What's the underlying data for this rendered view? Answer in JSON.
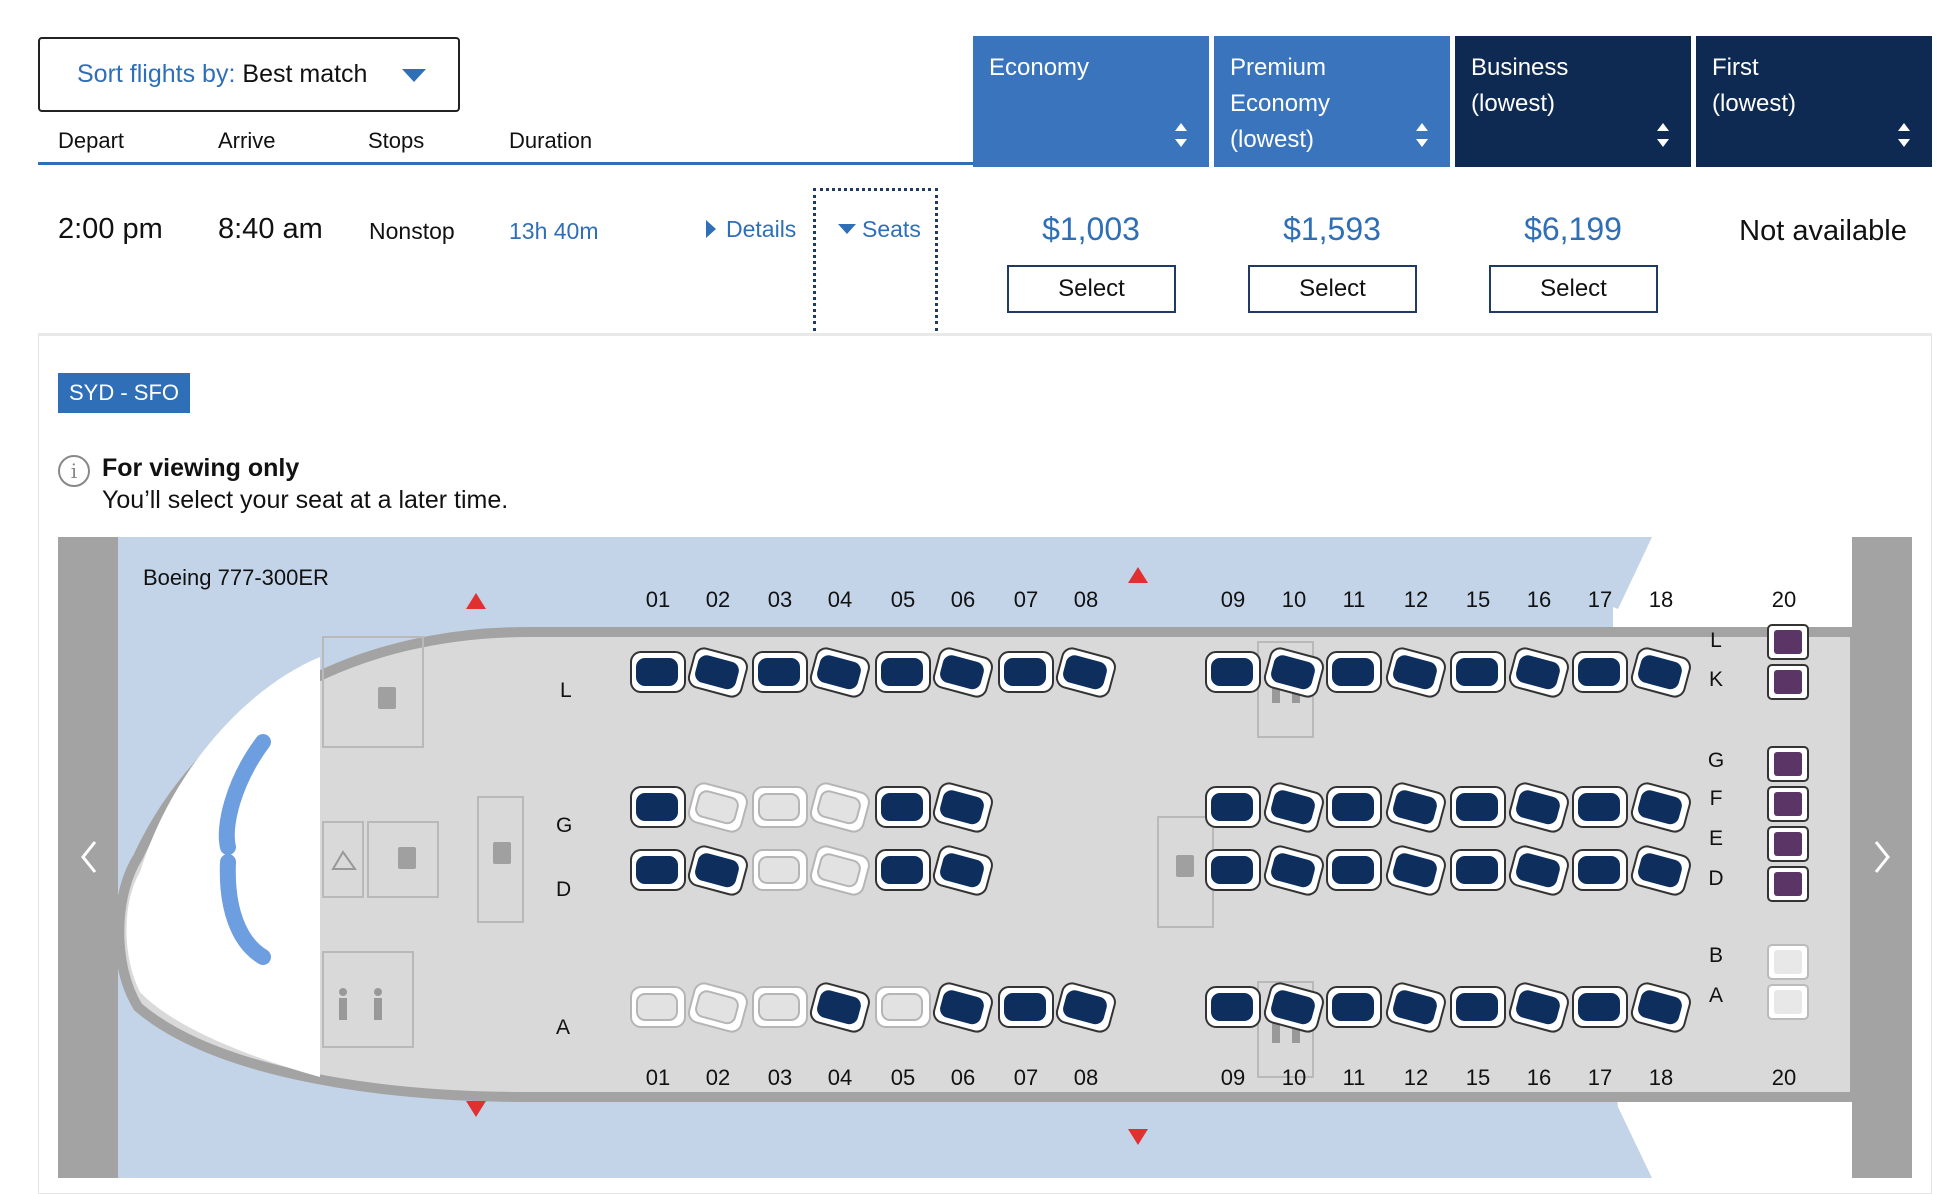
{
  "sort": {
    "label": "Sort flights by:",
    "value": "Best match"
  },
  "columns": {
    "depart": "Depart",
    "arrive": "Arrive",
    "stops": "Stops",
    "duration": "Duration"
  },
  "fare_classes": [
    {
      "line1": "Economy",
      "line2": "",
      "line3": "",
      "color": "#3a74bd"
    },
    {
      "line1": "Premium",
      "line2": "Economy",
      "line3": "(lowest)",
      "color": "#3a74bd"
    },
    {
      "line1": "Business",
      "line2": "(lowest)",
      "line3": "",
      "color": "#0e2a52"
    },
    {
      "line1": "First",
      "line2": "(lowest)",
      "line3": "",
      "color": "#0e2a52"
    }
  ],
  "flight": {
    "depart": "2:00 pm",
    "arrive": "8:40 am",
    "stops": "Nonstop",
    "duration": "13h 40m",
    "details_link": "Details",
    "seats_link": "Seats",
    "prices": [
      "$1,003",
      "$1,593",
      "$6,199"
    ],
    "select_label": "Select",
    "first_status": "Not available"
  },
  "route": "SYD - SFO",
  "notice": {
    "title": "For viewing only",
    "subtitle": "You’ll select your seat at a later time."
  },
  "aircraft": "Boeing 777-300ER",
  "rows": [
    "01",
    "02",
    "03",
    "04",
    "05",
    "06",
    "07",
    "08",
    "09",
    "10",
    "11",
    "12",
    "15",
    "16",
    "17",
    "18",
    "20"
  ],
  "seat_letters_front": {
    "L": "L",
    "G": "G",
    "D": "D",
    "A": "A"
  },
  "seat_letters_back": [
    "L",
    "K",
    "G",
    "F",
    "E",
    "D",
    "B",
    "A"
  ],
  "seat_status": {
    "front_L": [
      1,
      1,
      1,
      1,
      1,
      1,
      1,
      1
    ],
    "front_G": [
      1,
      0,
      0,
      0,
      1,
      1
    ],
    "front_D": [
      1,
      1,
      0,
      0,
      1,
      1
    ],
    "front_A": [
      0,
      0,
      0,
      1,
      0,
      1,
      1,
      1
    ],
    "rear_L": [
      1,
      1,
      1,
      1,
      1,
      1,
      1,
      1
    ],
    "rear_G": [
      1,
      1,
      1,
      1,
      1,
      1,
      1,
      1
    ],
    "rear_D": [
      1,
      1,
      1,
      1,
      1,
      1,
      1,
      1
    ],
    "rear_A": [
      1,
      1,
      1,
      1,
      1,
      1,
      1,
      1
    ]
  },
  "colors": {
    "primary": "#2f6fb7",
    "navy": "#0e2a52",
    "seat_available": "#0e2f5e",
    "seat_unavailable": "#c9c9c9",
    "premium_seat": "#5a3566",
    "cabin_floor": "#d9d9d9",
    "sky": "#c3d4e8",
    "exit_marker": "#e03030"
  }
}
